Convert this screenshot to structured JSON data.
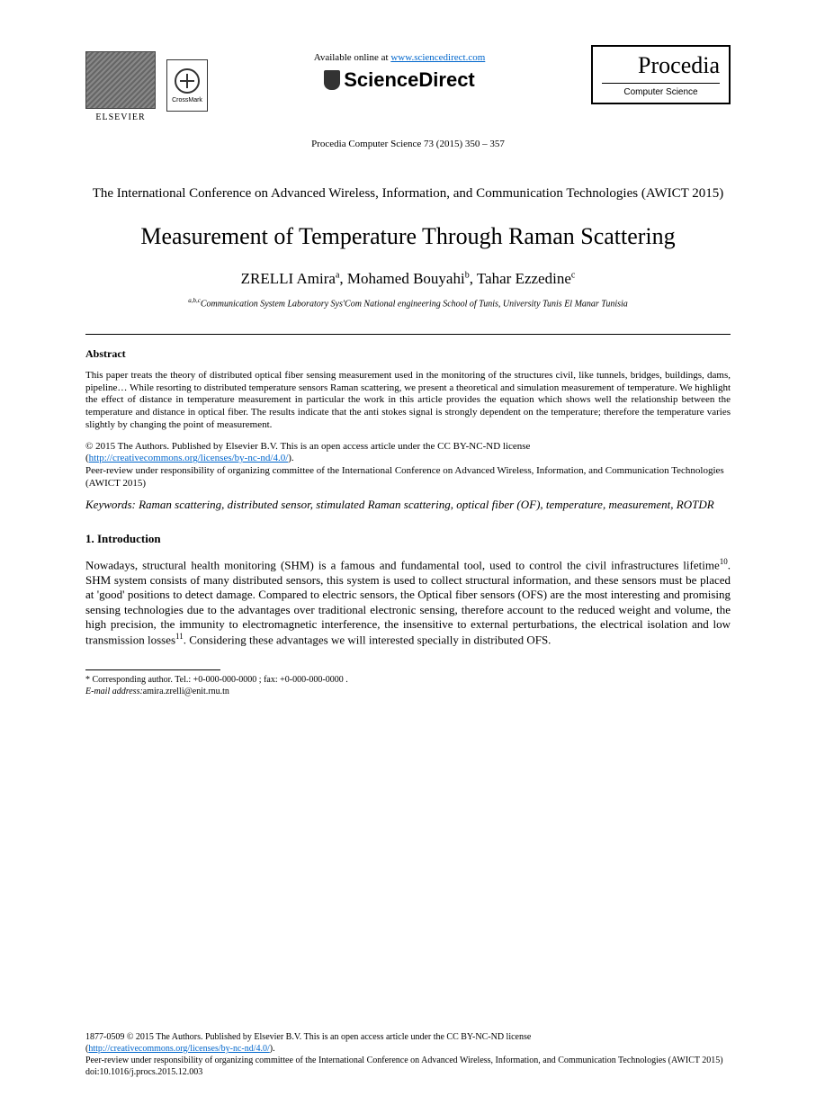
{
  "header": {
    "elsevier_label": "ELSEVIER",
    "crossmark_label": "CrossMark",
    "available_text": "Available online at ",
    "available_url": "www.sciencedirect.com",
    "sciencedirect_label": "ScienceDirect",
    "procedia_title": "Procedia",
    "procedia_subtitle": "Computer Science",
    "citation": "Procedia Computer Science 73 (2015) 350 – 357"
  },
  "conference": "The International Conference on Advanced Wireless, Information, and Communication Technologies (AWICT 2015)",
  "title": "Measurement of Temperature Through Raman Scattering",
  "authors_html": "ZRELLI Amira<sup>a</sup>, Mohamed Bouyahi<sup>b</sup>, Tahar Ezzedine<sup>c</sup>",
  "affiliation_html": "<sup>a,b,c</sup>Communication System Laboratory Sys'Com National engineering School of Tunis, University Tunis El Manar Tunisia",
  "abstract": {
    "heading": "Abstract",
    "text": "This paper treats the theory of distributed optical fiber sensing measurement used in the monitoring of the structures civil, like tunnels, bridges, buildings, dams, pipeline… While resorting to distributed temperature sensors Raman scattering, we present a theoretical and simulation measurement of temperature. We highlight the effect of distance in temperature measurement in particular the work in this article provides the equation which shows well the relationship between the temperature and distance in optical fiber. The results indicate that the anti stokes signal is strongly dependent on the temperature; therefore the temperature varies slightly by changing the point of measurement."
  },
  "copyright": {
    "line1": "© 2015 The Authors. Published by Elsevier B.V. This is an open access article under the CC BY-NC-ND license",
    "license_url": "http://creativecommons.org/licenses/by-nc-nd/4.0/",
    "line2": "Peer-review under responsibility of organizing committee of the International Conference on Advanced Wireless, Information, and Communication Technologies (AWICT 2015)"
  },
  "keywords": "Keywords: Raman scattering, distributed sensor, stimulated Raman scattering, optical fiber (OF), temperature, measurement, ROTDR",
  "intro": {
    "heading": "1. Introduction",
    "text_html": "Nowadays, structural health monitoring (SHM) is a famous and fundamental tool, used to control the civil infrastructures lifetime<sup>10</sup>. SHM system consists of many distributed sensors, this system is used to collect structural information, and these sensors must be placed at 'good' positions to detect damage. Compared to electric sensors, the Optical fiber sensors (OFS) are the most interesting and promising sensing technologies due to the advantages over traditional electronic sensing, therefore account to the reduced weight and volume, the high precision, the immunity to electromagnetic interference, the insensitive to external perturbations, the electrical isolation and low transmission losses<sup>11</sup>. Considering these advantages we will interested specially in distributed OFS."
  },
  "footnote": {
    "corresponding": "* Corresponding author. Tel.: +0-000-000-0000 ; fax: +0-000-000-0000 .",
    "email_label": "E-mail address:",
    "email": "amira.zrelli@enit.rnu.tn"
  },
  "footer": {
    "issn_line": "1877-0509 © 2015 The Authors. Published by Elsevier B.V. This is an open access article under the CC BY-NC-ND license",
    "license_url": "http://creativecommons.org/licenses/by-nc-nd/4.0/",
    "peer_review": "Peer-review under responsibility of organizing committee of the International Conference on Advanced Wireless, Information, and Communication Technologies (AWICT 2015)",
    "doi": "doi:10.1016/j.procs.2015.12.003"
  },
  "colors": {
    "text": "#000000",
    "link": "#0066cc",
    "background": "#ffffff"
  }
}
